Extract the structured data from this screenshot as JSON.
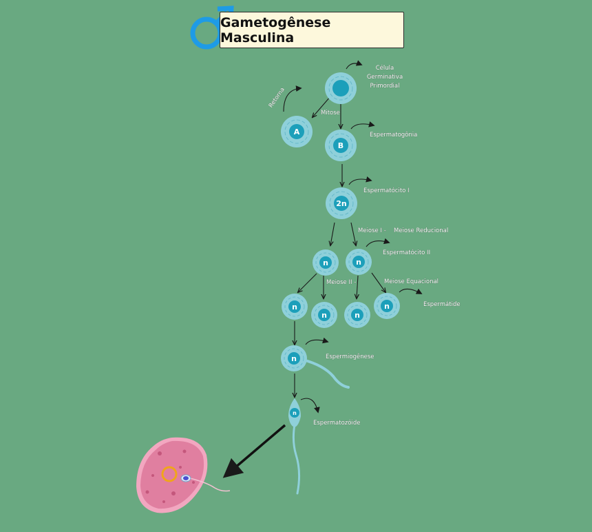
{
  "title": "Gametogênese Masculina",
  "colors": {
    "background": "#69a981",
    "cell_outer": "#8fd0da",
    "cell_nucleus": "#1c9fba",
    "symbol": "#1e9be6",
    "egg": "#e07fa0"
  },
  "icons": {
    "symbol": "male-symbol-icon"
  },
  "labels": {
    "celula_l1": "Célula",
    "celula_l2": "Germinativa",
    "celula_l3": "Primordial",
    "retorna": "Retorna",
    "mitose": "Mitose",
    "espermatogonia": "Espermatogônia",
    "espermatocito1": "Espermatócito I",
    "meiose1": "Meiose I -",
    "meiose_reducional": "Meiose Reducional",
    "espermatocito2": "Espermatócito II",
    "meiose2": "Meiose II -",
    "meiose_equacional": "Meiose Equacional",
    "espermatide": "Espermátide",
    "espermiogenese": "Espermiogênese",
    "espermatozoide": "Espermatozóide"
  },
  "cells": {
    "primordial": "",
    "A": "A",
    "B": "B",
    "espermatocito1": "2n",
    "n1": "n",
    "n2": "n",
    "n3": "n",
    "n4": "n",
    "n5": "n",
    "n6": "n",
    "espermiogenese": "n",
    "espermatozoide": "n"
  }
}
